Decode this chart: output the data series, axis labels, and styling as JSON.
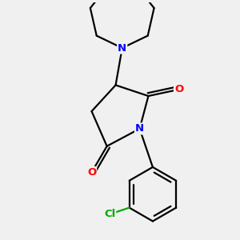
{
  "bg_color": "#f0f0f0",
  "bond_color": "#000000",
  "N_color": "#0000ff",
  "O_color": "#ff0000",
  "Cl_color": "#00aa00",
  "line_width": 1.6,
  "font_size_atom": 9.5,
  "fig_size": [
    3.0,
    3.0
  ],
  "dpi": 100,
  "xlim": [
    -1.8,
    2.0
  ],
  "ylim": [
    -2.6,
    2.8
  ]
}
